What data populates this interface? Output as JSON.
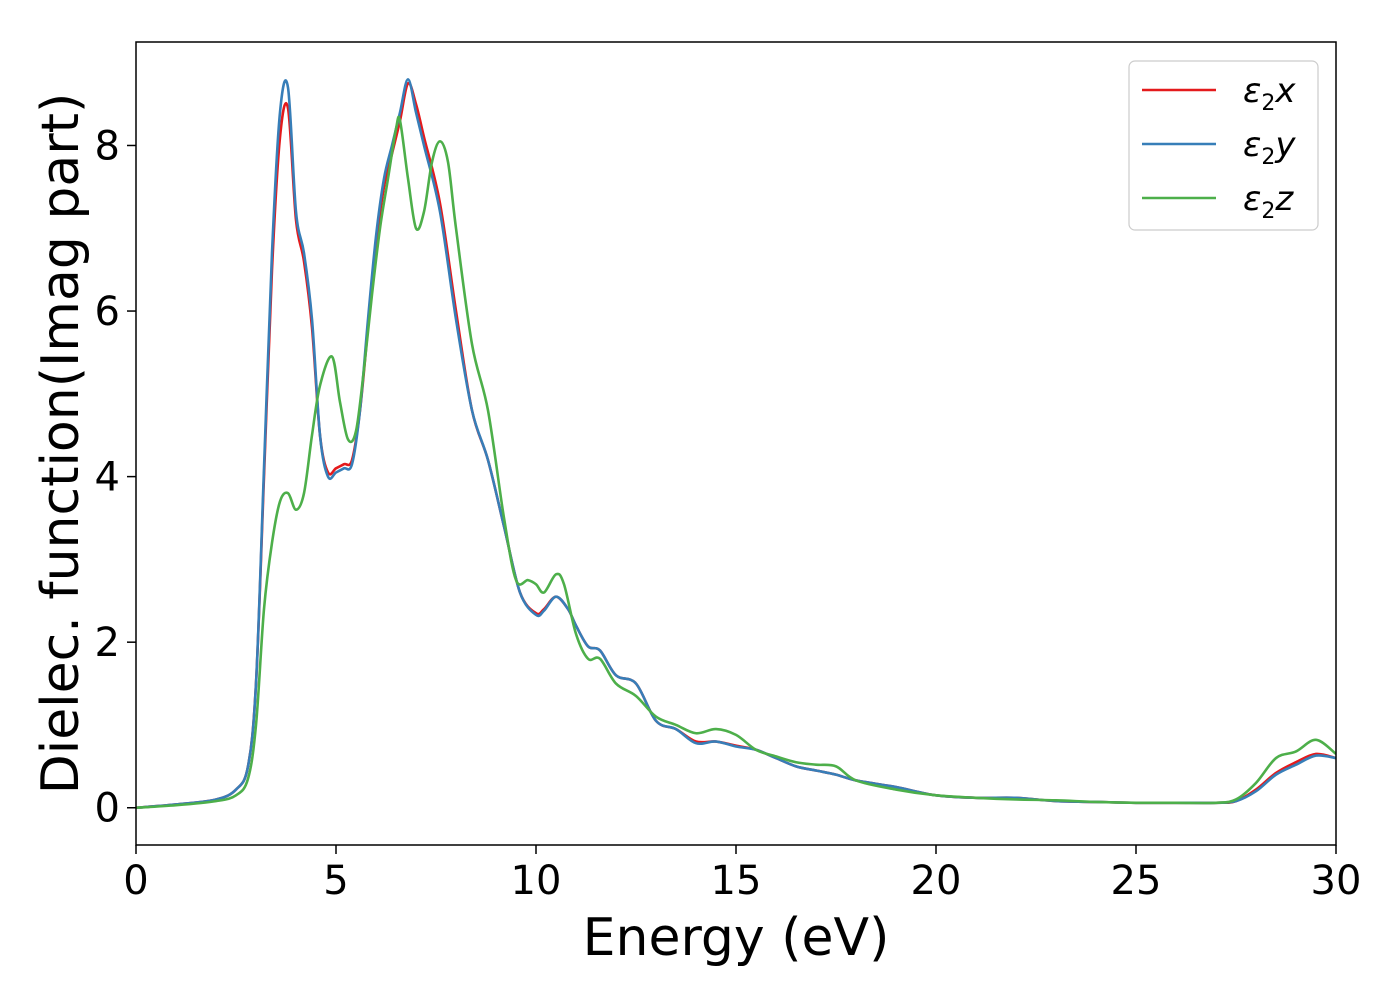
{
  "chart_data": {
    "type": "line",
    "title": "",
    "xlabel": "Energy (eV)",
    "ylabel": "Dielec. function(Imag part)",
    "xlim": [
      0,
      30
    ],
    "ylim": [
      -0.45,
      9.25
    ],
    "xticks": [
      0,
      5,
      10,
      15,
      20,
      25,
      30
    ],
    "yticks": [
      0,
      2,
      4,
      6,
      8
    ],
    "grid": false,
    "legend_position": "top-right",
    "series": [
      {
        "name": "ε2x",
        "legend_base": "ε",
        "legend_sub": "2",
        "legend_tail": "x",
        "color": "#e41a1c",
        "points": [
          [
            0,
            0
          ],
          [
            1,
            0.04
          ],
          [
            2,
            0.1
          ],
          [
            2.5,
            0.22
          ],
          [
            2.8,
            0.5
          ],
          [
            3.0,
            1.5
          ],
          [
            3.2,
            4.0
          ],
          [
            3.4,
            6.5
          ],
          [
            3.6,
            8.1
          ],
          [
            3.8,
            8.45
          ],
          [
            4.0,
            7.1
          ],
          [
            4.2,
            6.6
          ],
          [
            4.4,
            5.8
          ],
          [
            4.6,
            4.5
          ],
          [
            4.8,
            4.05
          ],
          [
            5.0,
            4.1
          ],
          [
            5.2,
            4.15
          ],
          [
            5.4,
            4.2
          ],
          [
            5.6,
            4.8
          ],
          [
            5.8,
            5.8
          ],
          [
            6.0,
            6.8
          ],
          [
            6.2,
            7.5
          ],
          [
            6.4,
            7.9
          ],
          [
            6.6,
            8.3
          ],
          [
            6.8,
            8.75
          ],
          [
            7.0,
            8.5
          ],
          [
            7.2,
            8.1
          ],
          [
            7.6,
            7.3
          ],
          [
            8.0,
            6.0
          ],
          [
            8.4,
            4.8
          ],
          [
            8.8,
            4.2
          ],
          [
            9.2,
            3.4
          ],
          [
            9.6,
            2.6
          ],
          [
            10.0,
            2.35
          ],
          [
            10.2,
            2.4
          ],
          [
            10.5,
            2.55
          ],
          [
            10.8,
            2.4
          ],
          [
            11.0,
            2.2
          ],
          [
            11.3,
            1.95
          ],
          [
            11.6,
            1.9
          ],
          [
            12.0,
            1.6
          ],
          [
            12.5,
            1.5
          ],
          [
            13.0,
            1.05
          ],
          [
            13.5,
            0.95
          ],
          [
            14.0,
            0.8
          ],
          [
            14.5,
            0.8
          ],
          [
            15.0,
            0.75
          ],
          [
            15.5,
            0.7
          ],
          [
            16.0,
            0.6
          ],
          [
            16.5,
            0.5
          ],
          [
            17.0,
            0.45
          ],
          [
            17.5,
            0.4
          ],
          [
            18.0,
            0.33
          ],
          [
            19.0,
            0.25
          ],
          [
            20.0,
            0.15
          ],
          [
            21.0,
            0.12
          ],
          [
            22.0,
            0.12
          ],
          [
            23.0,
            0.08
          ],
          [
            24.0,
            0.07
          ],
          [
            25.0,
            0.06
          ],
          [
            26.0,
            0.06
          ],
          [
            27.0,
            0.06
          ],
          [
            27.5,
            0.08
          ],
          [
            28.0,
            0.22
          ],
          [
            28.5,
            0.42
          ],
          [
            29.0,
            0.55
          ],
          [
            29.5,
            0.65
          ],
          [
            30.0,
            0.6
          ]
        ]
      },
      {
        "name": "ε2y",
        "legend_base": "ε",
        "legend_sub": "2",
        "legend_tail": "y",
        "color": "#377eb8",
        "points": [
          [
            0,
            0
          ],
          [
            1,
            0.04
          ],
          [
            2,
            0.1
          ],
          [
            2.5,
            0.22
          ],
          [
            2.8,
            0.5
          ],
          [
            3.0,
            1.5
          ],
          [
            3.2,
            4.1
          ],
          [
            3.4,
            6.7
          ],
          [
            3.6,
            8.4
          ],
          [
            3.8,
            8.7
          ],
          [
            4.0,
            7.2
          ],
          [
            4.2,
            6.7
          ],
          [
            4.4,
            5.9
          ],
          [
            4.6,
            4.5
          ],
          [
            4.8,
            4.0
          ],
          [
            5.0,
            4.05
          ],
          [
            5.2,
            4.1
          ],
          [
            5.4,
            4.15
          ],
          [
            5.6,
            4.8
          ],
          [
            5.8,
            5.9
          ],
          [
            6.0,
            6.9
          ],
          [
            6.2,
            7.6
          ],
          [
            6.4,
            8.0
          ],
          [
            6.6,
            8.4
          ],
          [
            6.8,
            8.8
          ],
          [
            7.0,
            8.4
          ],
          [
            7.2,
            8.0
          ],
          [
            7.6,
            7.2
          ],
          [
            8.0,
            5.9
          ],
          [
            8.4,
            4.8
          ],
          [
            8.8,
            4.2
          ],
          [
            9.2,
            3.4
          ],
          [
            9.6,
            2.6
          ],
          [
            10.0,
            2.33
          ],
          [
            10.2,
            2.38
          ],
          [
            10.5,
            2.55
          ],
          [
            10.8,
            2.4
          ],
          [
            11.0,
            2.2
          ],
          [
            11.3,
            1.95
          ],
          [
            11.6,
            1.9
          ],
          [
            12.0,
            1.6
          ],
          [
            12.5,
            1.5
          ],
          [
            13.0,
            1.05
          ],
          [
            13.5,
            0.95
          ],
          [
            14.0,
            0.78
          ],
          [
            14.5,
            0.8
          ],
          [
            15.0,
            0.74
          ],
          [
            15.5,
            0.7
          ],
          [
            16.0,
            0.6
          ],
          [
            16.5,
            0.5
          ],
          [
            17.0,
            0.45
          ],
          [
            17.5,
            0.4
          ],
          [
            18.0,
            0.33
          ],
          [
            19.0,
            0.25
          ],
          [
            20.0,
            0.15
          ],
          [
            21.0,
            0.12
          ],
          [
            22.0,
            0.12
          ],
          [
            23.0,
            0.08
          ],
          [
            24.0,
            0.07
          ],
          [
            25.0,
            0.06
          ],
          [
            26.0,
            0.06
          ],
          [
            27.0,
            0.06
          ],
          [
            27.5,
            0.08
          ],
          [
            28.0,
            0.2
          ],
          [
            28.5,
            0.4
          ],
          [
            29.0,
            0.52
          ],
          [
            29.5,
            0.63
          ],
          [
            30.0,
            0.6
          ]
        ]
      },
      {
        "name": "ε2z",
        "legend_base": "ε",
        "legend_sub": "2",
        "legend_tail": "z",
        "color": "#4daf4a",
        "points": [
          [
            0,
            0
          ],
          [
            1,
            0.03
          ],
          [
            2,
            0.08
          ],
          [
            2.5,
            0.15
          ],
          [
            2.8,
            0.35
          ],
          [
            3.0,
            1.0
          ],
          [
            3.2,
            2.4
          ],
          [
            3.4,
            3.2
          ],
          [
            3.6,
            3.7
          ],
          [
            3.8,
            3.8
          ],
          [
            4.0,
            3.6
          ],
          [
            4.2,
            3.8
          ],
          [
            4.4,
            4.5
          ],
          [
            4.6,
            5.1
          ],
          [
            4.9,
            5.45
          ],
          [
            5.1,
            4.9
          ],
          [
            5.3,
            4.45
          ],
          [
            5.5,
            4.55
          ],
          [
            5.7,
            5.3
          ],
          [
            5.9,
            6.2
          ],
          [
            6.1,
            7.0
          ],
          [
            6.3,
            7.6
          ],
          [
            6.5,
            8.2
          ],
          [
            6.6,
            8.3
          ],
          [
            6.8,
            7.6
          ],
          [
            7.0,
            7.0
          ],
          [
            7.2,
            7.2
          ],
          [
            7.4,
            7.8
          ],
          [
            7.6,
            8.05
          ],
          [
            7.8,
            7.8
          ],
          [
            8.0,
            7.0
          ],
          [
            8.4,
            5.6
          ],
          [
            8.8,
            4.8
          ],
          [
            9.2,
            3.5
          ],
          [
            9.5,
            2.75
          ],
          [
            9.8,
            2.75
          ],
          [
            10.0,
            2.7
          ],
          [
            10.2,
            2.6
          ],
          [
            10.5,
            2.82
          ],
          [
            10.7,
            2.7
          ],
          [
            11.0,
            2.1
          ],
          [
            11.3,
            1.8
          ],
          [
            11.6,
            1.8
          ],
          [
            12.0,
            1.5
          ],
          [
            12.5,
            1.35
          ],
          [
            13.0,
            1.1
          ],
          [
            13.5,
            1.0
          ],
          [
            14.0,
            0.9
          ],
          [
            14.5,
            0.95
          ],
          [
            15.0,
            0.88
          ],
          [
            15.5,
            0.7
          ],
          [
            16.0,
            0.62
          ],
          [
            16.5,
            0.55
          ],
          [
            17.0,
            0.52
          ],
          [
            17.5,
            0.5
          ],
          [
            18.0,
            0.33
          ],
          [
            19.0,
            0.22
          ],
          [
            20.0,
            0.15
          ],
          [
            21.0,
            0.12
          ],
          [
            22.0,
            0.1
          ],
          [
            23.0,
            0.09
          ],
          [
            24.0,
            0.07
          ],
          [
            25.0,
            0.06
          ],
          [
            26.0,
            0.06
          ],
          [
            27.0,
            0.06
          ],
          [
            27.5,
            0.1
          ],
          [
            28.0,
            0.3
          ],
          [
            28.5,
            0.6
          ],
          [
            29.0,
            0.68
          ],
          [
            29.5,
            0.82
          ],
          [
            30.0,
            0.65
          ]
        ]
      }
    ]
  }
}
